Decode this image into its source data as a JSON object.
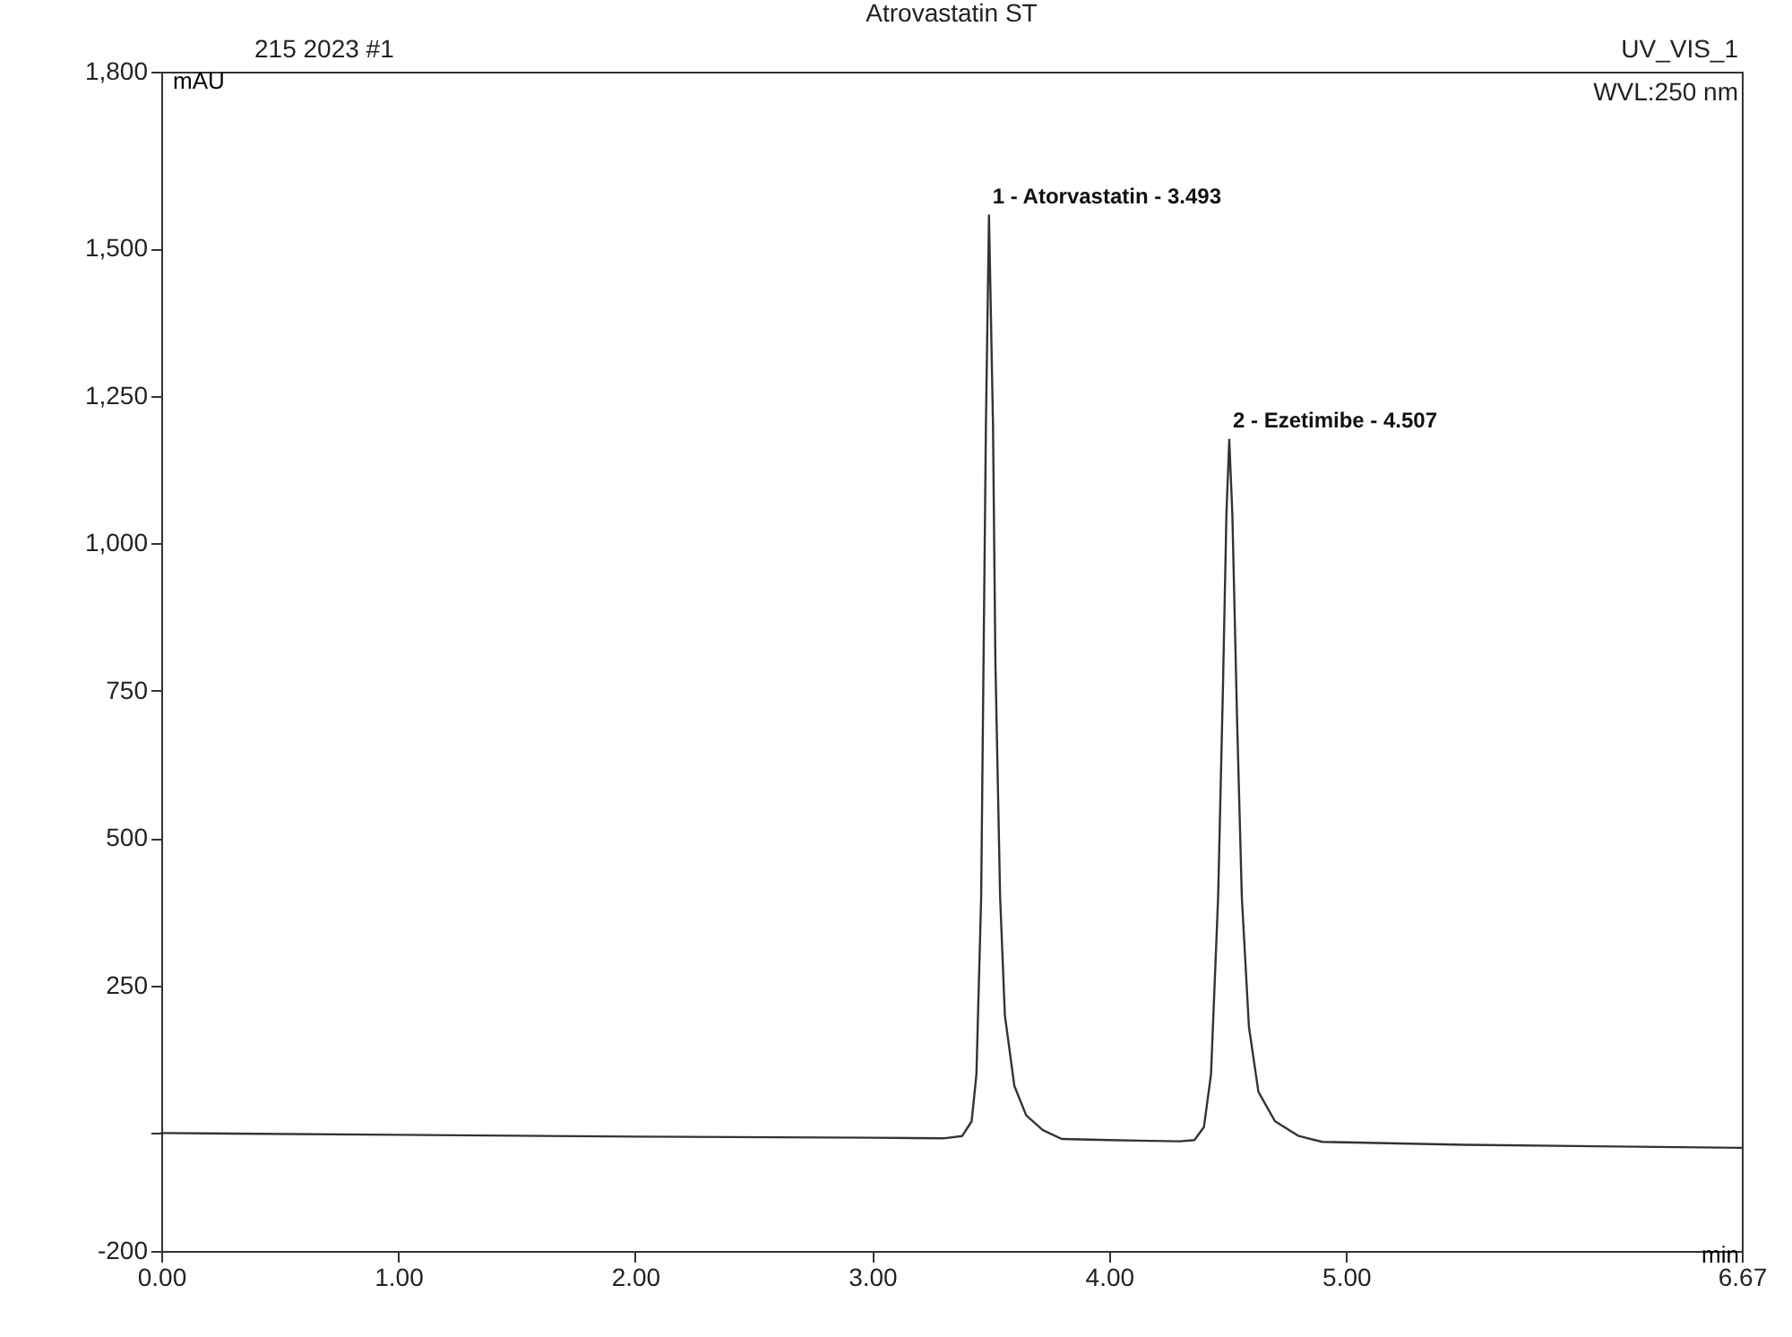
{
  "chart_data": {
    "type": "line",
    "title": "Atrovastatin ST",
    "xlabel": "min",
    "ylabel": "mAU",
    "annotations": [
      "215 2023 #1",
      "UV_VIS_1",
      "WVL:250 nm",
      {
        "text": "1 - Atorvastatin - 3.493",
        "x": 3.493,
        "y": 1556
      },
      {
        "text": "2 - Ezetimibe - 4.507",
        "x": 4.507,
        "y": 1176
      }
    ],
    "series": [
      {
        "color": "#333333",
        "x": [
          0,
          1,
          2,
          3,
          3.3,
          3.38,
          3.42,
          3.44,
          3.46,
          3.47,
          3.48,
          3.493,
          3.51,
          3.52,
          3.54,
          3.56,
          3.6,
          3.65,
          3.72,
          3.8,
          4.0,
          4.3,
          4.36,
          4.4,
          4.43,
          4.46,
          4.48,
          4.495,
          4.507,
          4.52,
          4.54,
          4.56,
          4.59,
          4.63,
          4.7,
          4.8,
          4.9,
          5.5,
          6.67
        ],
        "values": [
          0,
          -3,
          -6,
          -8,
          -9,
          -5,
          20,
          100,
          400,
          800,
          1200,
          1556,
          1200,
          800,
          400,
          200,
          80,
          30,
          5,
          -10,
          -12,
          -14,
          -12,
          10,
          100,
          400,
          750,
          1050,
          1176,
          1050,
          700,
          400,
          180,
          70,
          20,
          -5,
          -15,
          -20,
          -25
        ]
      }
    ],
    "xlim": [
      0,
      6.67
    ],
    "xticks": [
      {
        "value": 0,
        "label": "0.00"
      },
      {
        "value": 1,
        "label": "1.00"
      },
      {
        "value": 2,
        "label": "2.00"
      },
      {
        "value": 3,
        "label": "3.00"
      },
      {
        "value": 4,
        "label": "4.00"
      },
      {
        "value": 5,
        "label": "5.00"
      },
      6.67
    ],
    "ylim": [
      -200,
      1800
    ],
    "yticks": [
      -200,
      {
        "value": 0,
        "label": null
      },
      250,
      500,
      750,
      {
        "value": 1000,
        "label": "1,000"
      },
      {
        "value": 1250,
        "label": "1,250"
      },
      {
        "value": 1500,
        "label": "1,500"
      },
      {
        "value": 1800,
        "label": "1,800"
      }
    ],
    "marker": "none",
    "line_style": "solid"
  }
}
